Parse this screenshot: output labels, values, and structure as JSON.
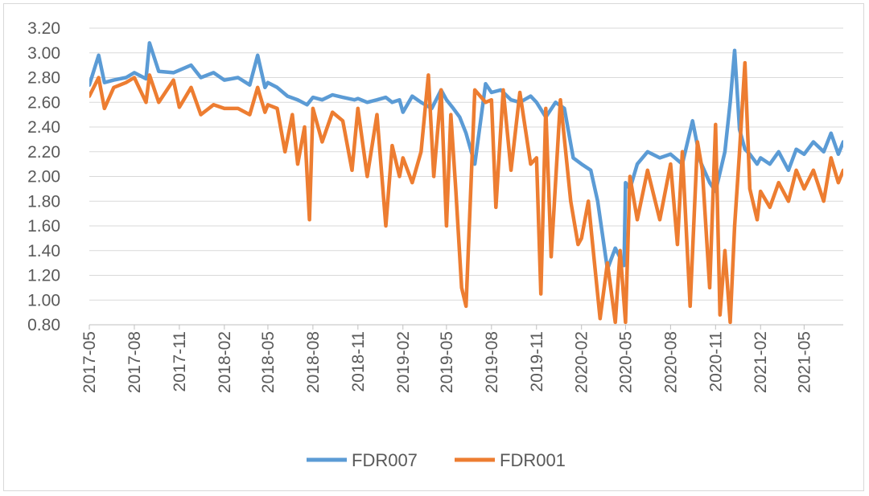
{
  "chart_data": {
    "type": "line",
    "title": "",
    "xlabel": "",
    "ylabel": "",
    "ylim": [
      0.8,
      3.2
    ],
    "y_ticks": [
      "0.80",
      "1.00",
      "1.20",
      "1.40",
      "1.60",
      "1.80",
      "2.00",
      "2.20",
      "2.40",
      "2.60",
      "2.80",
      "3.00",
      "3.20"
    ],
    "x_ticks": [
      "2017-05",
      "2017-08",
      "2017-11",
      "2018-02",
      "2018-05",
      "2018-08",
      "2018-11",
      "2019-02",
      "2019-05",
      "2019-08",
      "2019-11",
      "2020-02",
      "2020-05",
      "2020-08",
      "2020-11",
      "2021-02",
      "2021-05"
    ],
    "x_range": [
      "2017-05",
      "2021-07-20"
    ],
    "grid": "horizontal",
    "legend_position": "bottom",
    "series": [
      {
        "name": "FDR007",
        "color": "#5b9bd5",
        "x": [
          "2017-05",
          "2017-05-20",
          "2017-06-01",
          "2017-06-20",
          "2017-07-15",
          "2017-08",
          "2017-08-25",
          "2017-09-01",
          "2017-09-20",
          "2017-10-20",
          "2017-11",
          "2017-11-25",
          "2017-12-15",
          "2018-01-10",
          "2018-02",
          "2018-03-01",
          "2018-03-25",
          "2018-04-10",
          "2018-04-25",
          "2018-05",
          "2018-05-20",
          "2018-06-10",
          "2018-07-01",
          "2018-07-20",
          "2018-08",
          "2018-08-20",
          "2018-09-10",
          "2018-10-01",
          "2018-10-25",
          "2018-11",
          "2018-11-20",
          "2018-12-10",
          "2018-12-28",
          "2019-01-10",
          "2019-01-25",
          "2019-02",
          "2019-02-20",
          "2019-03-10",
          "2019-04-01",
          "2019-04-20",
          "2019-05",
          "2019-05-15",
          "2019-05-28",
          "2019-06-10",
          "2019-06-28",
          "2019-07-20",
          "2019-08",
          "2019-08-20",
          "2019-09-10",
          "2019-09-28",
          "2019-10-20",
          "2019-11",
          "2019-11-20",
          "2019-12-10",
          "2019-12-28",
          "2020-01-15",
          "2020-02",
          "2020-02-20",
          "2020-03-05",
          "2020-03-25",
          "2020-04-10",
          "2020-04-28",
          "2020-05",
          "2020-05-10",
          "2020-05-25",
          "2020-06-15",
          "2020-07-10",
          "2020-08",
          "2020-08-25",
          "2020-09-15",
          "2020-09-25",
          "2020-10-01",
          "2020-10-20",
          "2020-11",
          "2020-11-20",
          "2020-12-01",
          "2020-12-10",
          "2020-12-20",
          "2020-12-31",
          "2021-01-10",
          "2021-01-25",
          "2021-02",
          "2021-02-20",
          "2021-03-10",
          "2021-03-30",
          "2021-04-15",
          "2021-05",
          "2021-05-20",
          "2021-06-10",
          "2021-06-25",
          "2021-07-10",
          "2021-07-20"
        ],
        "y": [
          2.74,
          2.98,
          2.76,
          2.78,
          2.8,
          2.84,
          2.79,
          3.08,
          2.85,
          2.84,
          2.86,
          2.9,
          2.8,
          2.84,
          2.78,
          2.8,
          2.74,
          2.98,
          2.72,
          2.76,
          2.72,
          2.65,
          2.62,
          2.58,
          2.64,
          2.62,
          2.66,
          2.64,
          2.62,
          2.63,
          2.6,
          2.62,
          2.64,
          2.6,
          2.62,
          2.52,
          2.65,
          2.6,
          2.55,
          2.7,
          2.62,
          2.55,
          2.48,
          2.35,
          2.1,
          2.75,
          2.68,
          2.7,
          2.62,
          2.6,
          2.65,
          2.6,
          2.48,
          2.6,
          2.55,
          2.15,
          2.1,
          2.05,
          1.8,
          1.25,
          1.42,
          1.28,
          1.95,
          1.9,
          2.1,
          2.2,
          2.15,
          2.18,
          2.1,
          2.45,
          2.25,
          2.12,
          1.95,
          1.88,
          2.2,
          2.6,
          3.02,
          2.38,
          2.22,
          2.18,
          2.1,
          2.15,
          2.1,
          2.2,
          2.05,
          2.22,
          2.18,
          2.28,
          2.2,
          2.35,
          2.18,
          2.28
        ]
      },
      {
        "name": "FDR001",
        "color": "#ed7d31",
        "x": [
          "2017-05",
          "2017-05-20",
          "2017-06-01",
          "2017-06-20",
          "2017-07-15",
          "2017-08",
          "2017-08-25",
          "2017-09-01",
          "2017-09-20",
          "2017-10-20",
          "2017-11",
          "2017-11-25",
          "2017-12-15",
          "2018-01-10",
          "2018-02",
          "2018-03-01",
          "2018-03-25",
          "2018-04-10",
          "2018-04-25",
          "2018-05",
          "2018-05-20",
          "2018-06-05",
          "2018-06-20",
          "2018-07-01",
          "2018-07-15",
          "2018-07-25",
          "2018-08",
          "2018-08-20",
          "2018-09-10",
          "2018-10-01",
          "2018-10-20",
          "2018-11",
          "2018-11-20",
          "2018-12-10",
          "2018-12-28",
          "2019-01-10",
          "2019-01-25",
          "2019-02",
          "2019-02-20",
          "2019-03-10",
          "2019-03-25",
          "2019-04-05",
          "2019-04-20",
          "2019-05",
          "2019-05-10",
          "2019-05-20",
          "2019-06-01",
          "2019-06-10",
          "2019-06-28",
          "2019-07-20",
          "2019-08",
          "2019-08-10",
          "2019-08-25",
          "2019-09-10",
          "2019-09-28",
          "2019-10-20",
          "2019-11",
          "2019-11-10",
          "2019-11-20",
          "2019-12-01",
          "2019-12-20",
          "2020-01-10",
          "2020-01-25",
          "2020-02",
          "2020-02-15",
          "2020-02-25",
          "2020-03-10",
          "2020-03-25",
          "2020-04-10",
          "2020-04-20",
          "2020-05",
          "2020-05-10",
          "2020-05-25",
          "2020-06-15",
          "2020-07-10",
          "2020-08",
          "2020-08-15",
          "2020-08-25",
          "2020-09-10",
          "2020-09-25",
          "2020-10-05",
          "2020-10-20",
          "2020-11",
          "2020-11-10",
          "2020-11-20",
          "2020-12-01",
          "2020-12-10",
          "2020-12-20",
          "2020-12-31",
          "2021-01-10",
          "2021-01-25",
          "2021-02",
          "2021-02-20",
          "2021-03-10",
          "2021-03-30",
          "2021-04-15",
          "2021-05",
          "2021-05-20",
          "2021-06-10",
          "2021-06-25",
          "2021-07-10",
          "2021-07-20"
        ],
        "y": [
          2.65,
          2.8,
          2.55,
          2.72,
          2.76,
          2.8,
          2.6,
          2.82,
          2.6,
          2.78,
          2.56,
          2.72,
          2.5,
          2.58,
          2.55,
          2.55,
          2.5,
          2.72,
          2.52,
          2.58,
          2.55,
          2.2,
          2.5,
          2.1,
          2.4,
          1.65,
          2.55,
          2.28,
          2.52,
          2.45,
          2.05,
          2.55,
          2.0,
          2.5,
          1.6,
          2.25,
          2.0,
          2.15,
          1.95,
          2.2,
          2.82,
          2.0,
          2.7,
          1.6,
          2.5,
          1.9,
          1.1,
          0.95,
          2.7,
          2.6,
          2.62,
          1.75,
          2.7,
          2.05,
          2.68,
          2.1,
          2.15,
          1.05,
          2.55,
          1.35,
          2.62,
          1.8,
          1.45,
          1.5,
          1.8,
          1.4,
          0.85,
          1.3,
          0.82,
          1.4,
          0.82,
          2.0,
          1.65,
          2.05,
          1.65,
          2.1,
          1.45,
          2.2,
          0.95,
          2.28,
          2.05,
          1.1,
          2.42,
          0.88,
          1.4,
          0.82,
          1.6,
          2.2,
          2.92,
          1.9,
          1.65,
          1.88,
          1.75,
          1.95,
          1.8,
          2.05,
          1.9,
          2.05,
          1.8,
          2.15,
          1.95,
          2.05
        ]
      }
    ]
  }
}
